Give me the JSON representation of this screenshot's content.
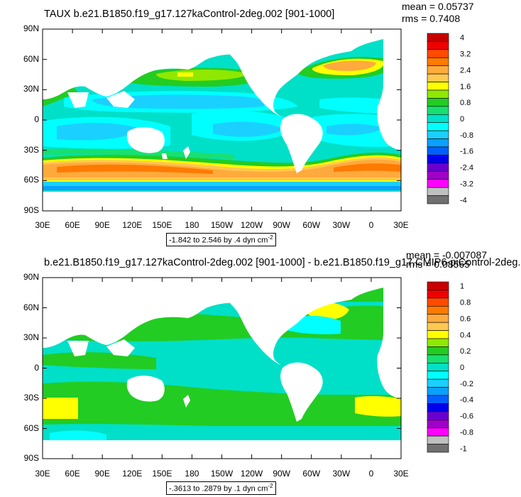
{
  "top_panel": {
    "title": "TAUX b.e21.B1850.f19_g17.127kaControl-2deg.002 [901-1000]",
    "mean_text": "mean = 0.05737",
    "rms_text": "rms = 0.7408",
    "range_prefix": "-1.842 to 2.546 by .4 dyn cm",
    "range_exp": "-2",
    "colorbar": {
      "labels": [
        "4",
        "3.2",
        "2.4",
        "1.6",
        "0.8",
        "0",
        "-0.8",
        "-1.6",
        "-2.4",
        "-3.2",
        "-4"
      ],
      "colors": [
        "#c80000",
        "#ee0000",
        "#ff4a00",
        "#ff7a00",
        "#ffaa3c",
        "#ffc850",
        "#ffff00",
        "#90e800",
        "#22cc22",
        "#18e070",
        "#00e0c8",
        "#00ffff",
        "#1ad0ff",
        "#0aa0ff",
        "#0060ff",
        "#0000ee",
        "#6a00d0",
        "#a000c8",
        "#ff00ff",
        "#c0c0c0",
        "#707070"
      ]
    }
  },
  "bottom_panel": {
    "title": "b.e21.B1850.f19_g17.127kaControl-2deg.002 [901-1000] - b.e21.B1850.f19_g17.CMIP6-piControl-2deg.",
    "mean_text": "mean = -0.007087",
    "rms_text": "rms = 0.08565",
    "range_prefix": "-.3613 to .2879 by .1 dyn cm",
    "range_exp": "-2",
    "colorbar": {
      "labels": [
        "1",
        "0.8",
        "0.6",
        "0.4",
        "0.2",
        "0",
        "-0.2",
        "-0.4",
        "-0.6",
        "-0.8",
        "-1"
      ],
      "colors": [
        "#c80000",
        "#ee0000",
        "#ff4a00",
        "#ff7a00",
        "#ffaa3c",
        "#ffc850",
        "#ffff00",
        "#90e800",
        "#22cc22",
        "#18e070",
        "#00e0c8",
        "#00ffff",
        "#1ad0ff",
        "#0aa0ff",
        "#0060ff",
        "#0000ee",
        "#6a00d0",
        "#a000c8",
        "#ff00ff",
        "#c0c0c0",
        "#707070"
      ]
    }
  },
  "axes": {
    "lat_labels": [
      "90N",
      "60N",
      "30N",
      "0",
      "30S",
      "60S",
      "90S"
    ],
    "lon_labels": [
      "30E",
      "60E",
      "90E",
      "120E",
      "150E",
      "180",
      "150W",
      "120W",
      "90W",
      "60W",
      "30W",
      "0",
      "30E"
    ]
  }
}
